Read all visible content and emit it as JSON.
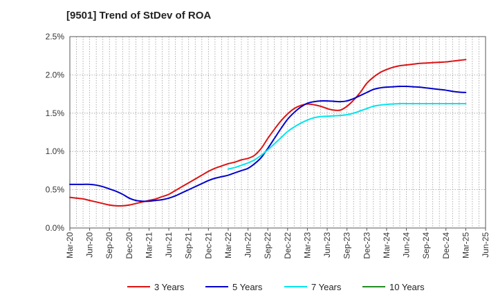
{
  "chart_data": {
    "type": "line",
    "title": "[9501]  Trend of StDev of ROA",
    "xlabel": "",
    "ylabel": "",
    "x_ticks": [
      "Mar-20",
      "Jun-20",
      "Sep-20",
      "Dec-20",
      "Mar-21",
      "Jun-21",
      "Sep-21",
      "Dec-21",
      "Mar-22",
      "Jun-22",
      "Sep-22",
      "Dec-22",
      "Mar-23",
      "Jun-23",
      "Sep-23",
      "Dec-23",
      "Mar-24",
      "Jun-24",
      "Sep-24",
      "Dec-24",
      "Mar-25",
      "Jun-25"
    ],
    "y_ticks": [
      "0.0%",
      "0.5%",
      "1.0%",
      "1.5%",
      "2.0%",
      "2.5%"
    ],
    "ylim": [
      0,
      2.5
    ],
    "grid": true,
    "legend_position": "bottom",
    "series": [
      {
        "name": "3 Years",
        "color": "#dd1111",
        "points": [
          [
            "Mar-20",
            0.4
          ],
          [
            "Apr-20",
            0.39
          ],
          [
            "May-20",
            0.38
          ],
          [
            "Jun-20",
            0.36
          ],
          [
            "Jul-20",
            0.34
          ],
          [
            "Aug-20",
            0.32
          ],
          [
            "Sep-20",
            0.3
          ],
          [
            "Oct-20",
            0.29
          ],
          [
            "Nov-20",
            0.29
          ],
          [
            "Dec-20",
            0.3
          ],
          [
            "Jan-21",
            0.32
          ],
          [
            "Feb-21",
            0.34
          ],
          [
            "Mar-21",
            0.36
          ],
          [
            "Apr-21",
            0.38
          ],
          [
            "May-21",
            0.41
          ],
          [
            "Jun-21",
            0.44
          ],
          [
            "Jul-21",
            0.49
          ],
          [
            "Aug-21",
            0.54
          ],
          [
            "Sep-21",
            0.59
          ],
          [
            "Oct-21",
            0.64
          ],
          [
            "Nov-21",
            0.69
          ],
          [
            "Dec-21",
            0.74
          ],
          [
            "Jan-22",
            0.78
          ],
          [
            "Feb-22",
            0.81
          ],
          [
            "Mar-22",
            0.84
          ],
          [
            "Apr-22",
            0.86
          ],
          [
            "May-22",
            0.89
          ],
          [
            "Jun-22",
            0.91
          ],
          [
            "Jul-22",
            0.95
          ],
          [
            "Aug-22",
            1.04
          ],
          [
            "Sep-22",
            1.17
          ],
          [
            "Oct-22",
            1.29
          ],
          [
            "Nov-22",
            1.4
          ],
          [
            "Dec-22",
            1.49
          ],
          [
            "Jan-23",
            1.56
          ],
          [
            "Feb-23",
            1.6
          ],
          [
            "Mar-23",
            1.62
          ],
          [
            "Apr-23",
            1.61
          ],
          [
            "May-23",
            1.59
          ],
          [
            "Jun-23",
            1.56
          ],
          [
            "Jul-23",
            1.54
          ],
          [
            "Aug-23",
            1.54
          ],
          [
            "Sep-23",
            1.59
          ],
          [
            "Oct-23",
            1.67
          ],
          [
            "Nov-23",
            1.77
          ],
          [
            "Dec-23",
            1.89
          ],
          [
            "Jan-24",
            1.97
          ],
          [
            "Feb-24",
            2.03
          ],
          [
            "Mar-24",
            2.07
          ],
          [
            "Apr-24",
            2.1
          ],
          [
            "May-24",
            2.12
          ],
          [
            "Jun-24",
            2.13
          ],
          [
            "Jul-24",
            2.14
          ],
          [
            "Aug-24",
            2.15
          ],
          [
            "Sep-24",
            2.155
          ],
          [
            "Oct-24",
            2.16
          ],
          [
            "Nov-24",
            2.165
          ],
          [
            "Dec-24",
            2.17
          ],
          [
            "Jan-25",
            2.18
          ],
          [
            "Feb-25",
            2.19
          ],
          [
            "Mar-25",
            2.2
          ]
        ]
      },
      {
        "name": "5 Years",
        "color": "#0000cc",
        "points": [
          [
            "Mar-20",
            0.57
          ],
          [
            "Apr-20",
            0.57
          ],
          [
            "May-20",
            0.57
          ],
          [
            "Jun-20",
            0.57
          ],
          [
            "Jul-20",
            0.56
          ],
          [
            "Aug-20",
            0.54
          ],
          [
            "Sep-20",
            0.51
          ],
          [
            "Oct-20",
            0.48
          ],
          [
            "Nov-20",
            0.44
          ],
          [
            "Dec-20",
            0.39
          ],
          [
            "Jan-21",
            0.36
          ],
          [
            "Feb-21",
            0.35
          ],
          [
            "Mar-21",
            0.35
          ],
          [
            "Apr-21",
            0.36
          ],
          [
            "May-21",
            0.37
          ],
          [
            "Jun-21",
            0.39
          ],
          [
            "Jul-21",
            0.42
          ],
          [
            "Aug-21",
            0.46
          ],
          [
            "Sep-21",
            0.5
          ],
          [
            "Oct-21",
            0.54
          ],
          [
            "Nov-21",
            0.58
          ],
          [
            "Dec-21",
            0.62
          ],
          [
            "Jan-22",
            0.65
          ],
          [
            "Feb-22",
            0.67
          ],
          [
            "Mar-22",
            0.69
          ],
          [
            "Apr-22",
            0.72
          ],
          [
            "May-22",
            0.75
          ],
          [
            "Jun-22",
            0.78
          ],
          [
            "Jul-22",
            0.84
          ],
          [
            "Aug-22",
            0.92
          ],
          [
            "Sep-22",
            1.04
          ],
          [
            "Oct-22",
            1.17
          ],
          [
            "Nov-22",
            1.3
          ],
          [
            "Dec-22",
            1.42
          ],
          [
            "Jan-23",
            1.51
          ],
          [
            "Feb-23",
            1.58
          ],
          [
            "Mar-23",
            1.63
          ],
          [
            "Apr-23",
            1.65
          ],
          [
            "May-23",
            1.66
          ],
          [
            "Jun-23",
            1.66
          ],
          [
            "Jul-23",
            1.655
          ],
          [
            "Aug-23",
            1.65
          ],
          [
            "Sep-23",
            1.66
          ],
          [
            "Oct-23",
            1.69
          ],
          [
            "Nov-23",
            1.73
          ],
          [
            "Dec-23",
            1.77
          ],
          [
            "Jan-24",
            1.81
          ],
          [
            "Feb-24",
            1.83
          ],
          [
            "Mar-24",
            1.84
          ],
          [
            "Apr-24",
            1.845
          ],
          [
            "May-24",
            1.85
          ],
          [
            "Jun-24",
            1.85
          ],
          [
            "Jul-24",
            1.845
          ],
          [
            "Aug-24",
            1.84
          ],
          [
            "Sep-24",
            1.83
          ],
          [
            "Oct-24",
            1.82
          ],
          [
            "Nov-24",
            1.81
          ],
          [
            "Dec-24",
            1.8
          ],
          [
            "Jan-25",
            1.785
          ],
          [
            "Feb-25",
            1.775
          ],
          [
            "Mar-25",
            1.77
          ]
        ]
      },
      {
        "name": "7 Years",
        "color": "#00e5ee",
        "points": [
          [
            "Mar-22",
            0.77
          ],
          [
            "Apr-22",
            0.79
          ],
          [
            "May-22",
            0.82
          ],
          [
            "Jun-22",
            0.85
          ],
          [
            "Jul-22",
            0.89
          ],
          [
            "Aug-22",
            0.95
          ],
          [
            "Sep-22",
            1.02
          ],
          [
            "Oct-22",
            1.1
          ],
          [
            "Nov-22",
            1.18
          ],
          [
            "Dec-22",
            1.26
          ],
          [
            "Jan-23",
            1.32
          ],
          [
            "Feb-23",
            1.37
          ],
          [
            "Mar-23",
            1.41
          ],
          [
            "Apr-23",
            1.44
          ],
          [
            "May-23",
            1.455
          ],
          [
            "Jun-23",
            1.46
          ],
          [
            "Jul-23",
            1.465
          ],
          [
            "Aug-23",
            1.47
          ],
          [
            "Sep-23",
            1.48
          ],
          [
            "Oct-23",
            1.5
          ],
          [
            "Nov-23",
            1.53
          ],
          [
            "Dec-23",
            1.56
          ],
          [
            "Jan-24",
            1.59
          ],
          [
            "Feb-24",
            1.605
          ],
          [
            "Mar-24",
            1.615
          ],
          [
            "Apr-24",
            1.62
          ],
          [
            "May-24",
            1.625
          ],
          [
            "Jun-24",
            1.625
          ],
          [
            "Jul-24",
            1.625
          ],
          [
            "Aug-24",
            1.625
          ],
          [
            "Sep-24",
            1.625
          ],
          [
            "Oct-24",
            1.625
          ],
          [
            "Nov-24",
            1.625
          ],
          [
            "Dec-24",
            1.625
          ],
          [
            "Jan-25",
            1.625
          ],
          [
            "Feb-25",
            1.625
          ],
          [
            "Mar-25",
            1.625
          ]
        ]
      },
      {
        "name": "10 Years",
        "color": "#228b22",
        "points": []
      }
    ]
  }
}
